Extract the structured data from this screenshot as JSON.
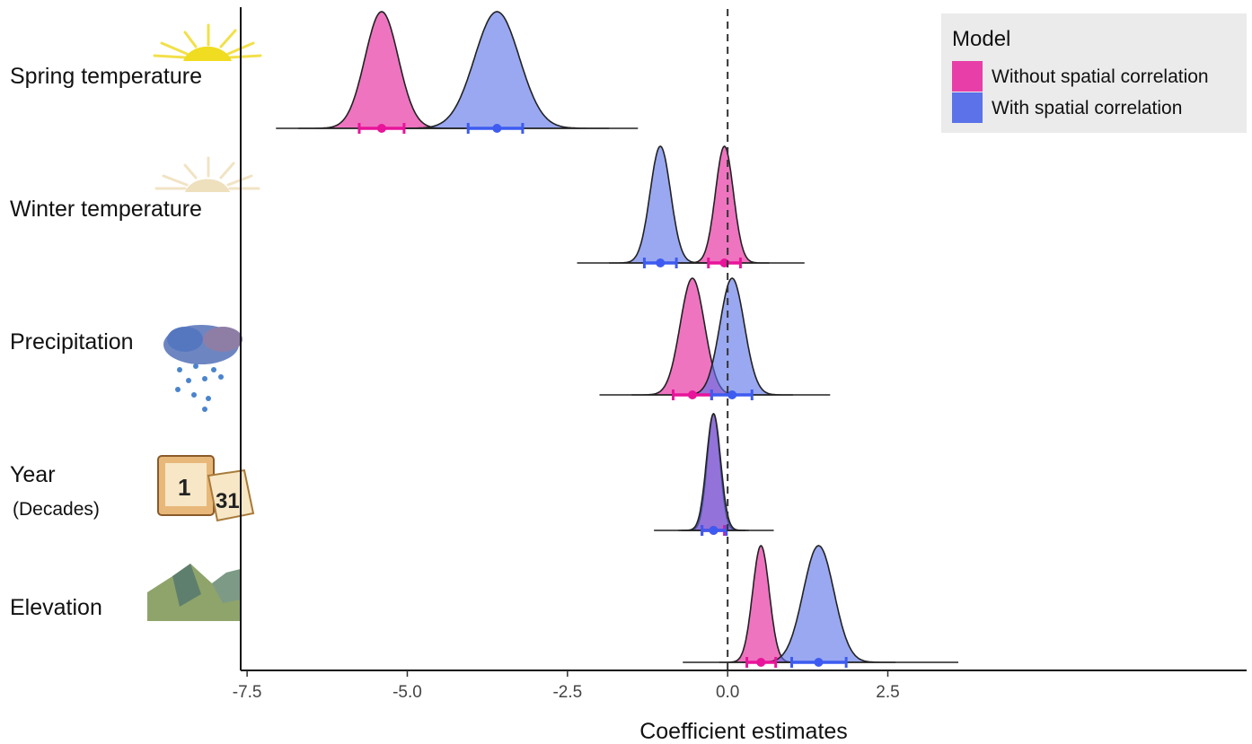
{
  "chart_data": {
    "type": "ridgeline-density",
    "xlabel": "Coefficient estimates",
    "xlim": [
      -7.6,
      8.1
    ],
    "x_ticks": [
      -7.5,
      -5.0,
      -2.5,
      0.0,
      2.5
    ],
    "x_tick_labels": [
      "-7.5",
      "-5.0",
      "-2.5",
      "0.0",
      "2.5"
    ],
    "reference_line": {
      "x": 0,
      "style": "dashed"
    },
    "legend": {
      "title": "Model",
      "placement": "top-right",
      "entries": [
        {
          "name": "Without spatial correlation",
          "color": "#e83ea8"
        },
        {
          "name": "With spatial correlation",
          "color": "#5b72e8"
        }
      ]
    },
    "rows": [
      {
        "label": "Spring temperature",
        "sublabel": "",
        "icon": "sun-icon",
        "range": [
          -7.05,
          -1.4
        ],
        "series": [
          {
            "name": "Without spatial correlation",
            "mean": -5.4,
            "sd": 0.26,
            "ci": [
              -5.75,
              -5.05
            ]
          },
          {
            "name": "With spatial correlation",
            "mean": -3.6,
            "sd": 0.35,
            "ci": [
              -4.05,
              -3.2
            ]
          }
        ]
      },
      {
        "label": "Winter temperature",
        "sublabel": "",
        "icon": "faded-sun-icon",
        "range": [
          -2.35,
          1.2
        ],
        "series": [
          {
            "name": "Without spatial correlation",
            "mean": -0.05,
            "sd": 0.14,
            "ci": [
              -0.3,
              0.2
            ]
          },
          {
            "name": "With spatial correlation",
            "mean": -1.05,
            "sd": 0.16,
            "ci": [
              -1.3,
              -0.8
            ]
          }
        ]
      },
      {
        "label": "Precipitation",
        "sublabel": "",
        "icon": "rain-cloud-icon",
        "range": [
          -2.0,
          1.6
        ],
        "series": [
          {
            "name": "Without spatial correlation",
            "mean": -0.55,
            "sd": 0.19,
            "ci": [
              -0.85,
              -0.25
            ]
          },
          {
            "name": "With spatial correlation",
            "mean": 0.07,
            "sd": 0.19,
            "ci": [
              -0.25,
              0.38
            ]
          }
        ]
      },
      {
        "label": "Year",
        "sublabel": "(Decades)",
        "icon": "calendar-icon",
        "range": [
          -1.15,
          0.72
        ],
        "series": [
          {
            "name": "Without spatial correlation",
            "mean": -0.22,
            "sd": 0.1,
            "ci": [
              -0.4,
              -0.05
            ]
          },
          {
            "name": "With spatial correlation",
            "mean": -0.22,
            "sd": 0.11,
            "ci": [
              -0.4,
              -0.02
            ]
          }
        ]
      },
      {
        "label": "Elevation",
        "sublabel": "",
        "icon": "mountain-icon",
        "range": [
          -0.7,
          3.6
        ],
        "series": [
          {
            "name": "Without spatial correlation",
            "mean": 0.52,
            "sd": 0.13,
            "ci": [
              0.3,
              0.75
            ]
          },
          {
            "name": "With spatial correlation",
            "mean": 1.42,
            "sd": 0.24,
            "ci": [
              1.0,
              1.85
            ]
          }
        ]
      }
    ]
  }
}
